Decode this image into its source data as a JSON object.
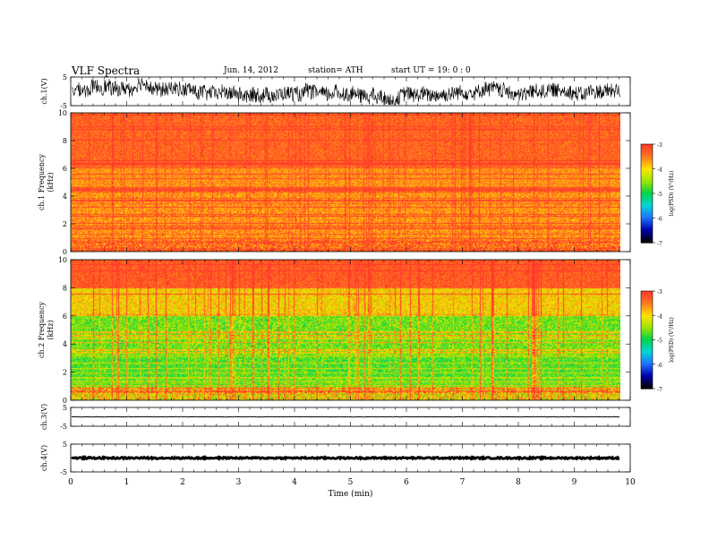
{
  "header": {
    "title": "VLF  Spectra",
    "date": "Jun. 14, 2012",
    "station": "station= ATH",
    "start": "start  UT =    19: 0  : 0"
  },
  "colorbars": [
    {
      "label": "log(PSD) (V²/Hz)",
      "ticks": [
        "-3",
        "-4",
        "-5",
        "-6",
        "-7"
      ]
    },
    {
      "label": "log(PSD) (V²/Hz)",
      "ticks": [
        "-3",
        "-4",
        "-5",
        "-6",
        "-7"
      ]
    }
  ],
  "colors": {
    "scale": [
      "#ff3a2a",
      "#ff7a1e",
      "#ffe400",
      "#9be600",
      "#00d34a",
      "#00d6d6",
      "#1f73ff",
      "#0000b0",
      "#000000"
    ],
    "waveform": "#000000"
  },
  "chart_data": [
    {
      "type": "line",
      "panel": "ch1",
      "ylabel": "ch.1(V)",
      "y_ticks": [
        "5",
        "-5"
      ],
      "ylim": [
        -5,
        5
      ],
      "description_of_signal": "noisy waveform roughly between -4 and 4 V"
    },
    {
      "type": "heatmap",
      "panel": "ch1-spectrogram",
      "ylabel": "ch.1 Frequency  (kHz)",
      "y_ticks": [
        "0",
        "2",
        "4",
        "6",
        "8",
        "10"
      ],
      "ylim": [
        0,
        10
      ],
      "x_range": [
        0,
        9.82
      ],
      "clim": [
        -7,
        -3
      ]
    },
    {
      "type": "heatmap",
      "panel": "ch2-spectrogram",
      "ylabel": "ch.2 Frequency  (kHz)",
      "y_ticks": [
        "0",
        "2",
        "4",
        "6",
        "8",
        "10"
      ],
      "ylim": [
        0,
        10
      ],
      "x_range": [
        0,
        9.82
      ],
      "clim": [
        -7,
        -3
      ]
    },
    {
      "type": "line",
      "panel": "ch3",
      "ylabel": "ch.3(V)",
      "y_ticks": [
        "5",
        "-5"
      ],
      "ylim": [
        -5,
        5
      ],
      "level": 0
    },
    {
      "type": "line",
      "panel": "ch4",
      "ylabel": "ch.4(V)",
      "y_ticks": [
        "5",
        "-5"
      ],
      "ylim": [
        -5,
        5
      ],
      "level": 0
    }
  ],
  "x_axis": {
    "label": "Time  (min)",
    "ticks": [
      "0",
      "1",
      "2",
      "3",
      "4",
      "5",
      "6",
      "7",
      "8",
      "9",
      "10"
    ],
    "xlim": [
      0,
      10
    ]
  }
}
